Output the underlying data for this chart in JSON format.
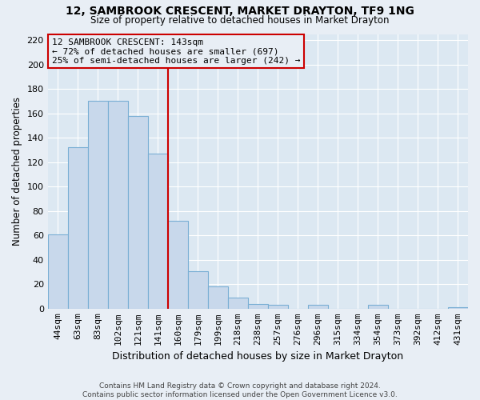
{
  "title": "12, SAMBROOK CRESCENT, MARKET DRAYTON, TF9 1NG",
  "subtitle": "Size of property relative to detached houses in Market Drayton",
  "xlabel": "Distribution of detached houses by size in Market Drayton",
  "ylabel": "Number of detached properties",
  "bar_labels": [
    "44sqm",
    "63sqm",
    "83sqm",
    "102sqm",
    "121sqm",
    "141sqm",
    "160sqm",
    "179sqm",
    "199sqm",
    "218sqm",
    "238sqm",
    "257sqm",
    "276sqm",
    "296sqm",
    "315sqm",
    "334sqm",
    "354sqm",
    "373sqm",
    "392sqm",
    "412sqm",
    "431sqm"
  ],
  "bar_values": [
    61,
    132,
    170,
    170,
    158,
    127,
    72,
    31,
    18,
    9,
    4,
    3,
    0,
    3,
    0,
    0,
    3,
    0,
    0,
    0,
    1
  ],
  "bar_color": "#c8d8eb",
  "bar_edge_color": "#7aafd4",
  "property_line_color": "#cc0000",
  "annotation_text": "12 SAMBROOK CRESCENT: 143sqm\n← 72% of detached houses are smaller (697)\n25% of semi-detached houses are larger (242) →",
  "annotation_box_edge": "#cc0000",
  "ylim": [
    0,
    225
  ],
  "yticks": [
    0,
    20,
    40,
    60,
    80,
    100,
    120,
    140,
    160,
    180,
    200,
    220
  ],
  "footer_line1": "Contains HM Land Registry data © Crown copyright and database right 2024.",
  "footer_line2": "Contains public sector information licensed under the Open Government Licence v3.0.",
  "background_color": "#e8eef5",
  "plot_bg_color": "#dce8f2",
  "grid_color": "#ffffff"
}
